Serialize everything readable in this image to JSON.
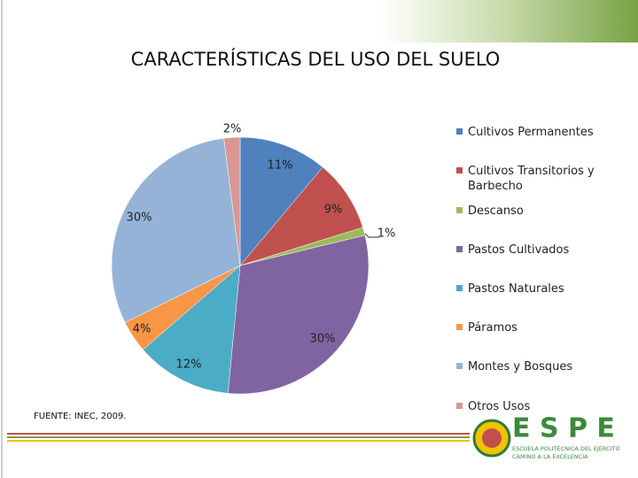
{
  "chart_data": {
    "type": "pie",
    "title": "CARACTERÍSTICAS DEL USO DEL SUELO",
    "categories": [
      "Cultivos Permanentes",
      "Cultivos Transitorios y Barbecho",
      "Descanso",
      "Pastos Cultivados",
      "Pastos Naturales",
      "Páramos",
      "Montes y Bosques",
      "Otros Usos"
    ],
    "values": [
      11,
      9,
      1,
      30,
      12,
      4,
      30,
      2
    ],
    "value_labels": [
      "11%",
      "9%",
      "1%",
      "30%",
      "12%",
      "4%",
      "30%",
      "2%"
    ],
    "colors": [
      "#4f81bd",
      "#c0504d",
      "#9bbb59",
      "#8064a2",
      "#4bacc6",
      "#f79646",
      "#95b3d7",
      "#d99694"
    ],
    "legend": "right",
    "source": "FUENTE: INEC, 2009."
  },
  "logo": {
    "name": "E S P E",
    "line1": "ESCUELA POLITÉCNICA DEL EJÉRCITO",
    "line2": "CAMINO A LA EXCELENCIA"
  }
}
